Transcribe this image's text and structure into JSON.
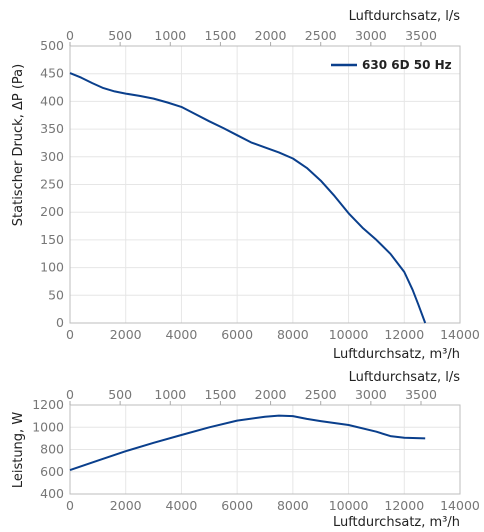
{
  "chart_data": [
    {
      "type": "line",
      "panel": "pressure",
      "title": "",
      "ylabel": "Statischer Druck, ΔP (Pa)",
      "xlabel_bottom": "Luftdurchsatz, m³/h",
      "xlabel_top": "Luftdurchsatz, l/s",
      "xlim": [
        0,
        14000
      ],
      "ylim": [
        0,
        500
      ],
      "xticks": [
        0,
        2000,
        4000,
        6000,
        8000,
        10000,
        12000,
        14000
      ],
      "yticks": [
        0,
        50,
        100,
        150,
        200,
        250,
        300,
        350,
        400,
        450,
        500
      ],
      "top_ticks": [
        0,
        500,
        1000,
        1500,
        2000,
        2500,
        3000,
        3500
      ],
      "grid": true,
      "legend": "top-right",
      "series": [
        {
          "name": "630 6D 50 Hz",
          "color": "#0a3f8c",
          "x": [
            0,
            400,
            800,
            1200,
            1600,
            2000,
            2500,
            3000,
            3500,
            4000,
            4500,
            5000,
            5500,
            6000,
            6500,
            7000,
            7500,
            8000,
            8500,
            9000,
            9500,
            10000,
            10500,
            11000,
            11500,
            12000,
            12300,
            12500,
            12750
          ],
          "y": [
            451,
            443,
            433,
            424,
            418,
            414,
            410,
            405,
            398,
            390,
            377,
            364,
            352,
            339,
            326,
            317,
            308,
            297,
            280,
            257,
            229,
            198,
            172,
            150,
            125,
            92,
            60,
            34,
            0
          ]
        }
      ]
    },
    {
      "type": "line",
      "panel": "power",
      "title": "",
      "ylabel": "Leistung, W",
      "xlabel_bottom": "Luftdurchsatz, m³/h",
      "xlabel_top": "Luftdurchsatz, l/s",
      "xlim": [
        0,
        14000
      ],
      "ylim": [
        400,
        1200
      ],
      "xticks": [
        0,
        2000,
        4000,
        6000,
        8000,
        10000,
        12000,
        14000
      ],
      "yticks": [
        400,
        600,
        800,
        1000,
        1200
      ],
      "top_ticks": [
        0,
        500,
        1000,
        1500,
        2000,
        2500,
        3000,
        3500
      ],
      "grid": true,
      "series": [
        {
          "name": "630 6D 50 Hz",
          "color": "#0a3f8c",
          "x": [
            0,
            1000,
            2000,
            3000,
            4000,
            5000,
            6000,
            7000,
            7500,
            8000,
            8500,
            9000,
            10000,
            11000,
            11500,
            12000,
            12750
          ],
          "y": [
            615,
            700,
            785,
            860,
            930,
            1000,
            1060,
            1095,
            1105,
            1100,
            1075,
            1055,
            1020,
            960,
            920,
            905,
            900
          ]
        }
      ]
    }
  ]
}
